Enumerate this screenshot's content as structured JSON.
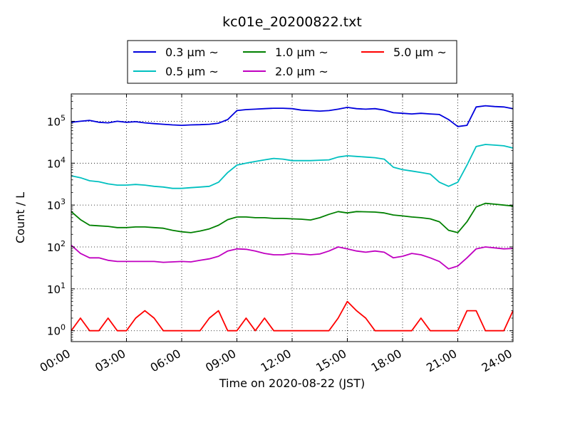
{
  "chart_data": {
    "type": "line",
    "title": "kc01e_20200822.txt",
    "xlabel": "Time on 2020-08-22 (JST)",
    "ylabel": "Count / L",
    "xlim": [
      "00:00",
      "24:00"
    ],
    "ylim": [
      0.55,
      450000
    ],
    "yscale": "log",
    "grid": true,
    "legend_position": "top-center",
    "x_ticks": [
      "00:00",
      "03:00",
      "06:00",
      "09:00",
      "12:00",
      "15:00",
      "18:00",
      "21:00",
      "24:00"
    ],
    "y_ticks": [
      {
        "base": "10",
        "exp": "0",
        "value": 1
      },
      {
        "base": "10",
        "exp": "1",
        "value": 10
      },
      {
        "base": "10",
        "exp": "2",
        "value": 100
      },
      {
        "base": "10",
        "exp": "3",
        "value": 1000
      },
      {
        "base": "10",
        "exp": "4",
        "value": 10000
      },
      {
        "base": "10",
        "exp": "5",
        "value": 100000
      }
    ],
    "x": [
      "00:00",
      "00:30",
      "01:00",
      "01:30",
      "02:00",
      "02:30",
      "03:00",
      "03:30",
      "04:00",
      "04:30",
      "05:00",
      "05:30",
      "06:00",
      "06:30",
      "07:00",
      "07:30",
      "08:00",
      "08:30",
      "09:00",
      "09:30",
      "10:00",
      "10:30",
      "11:00",
      "11:30",
      "12:00",
      "12:30",
      "13:00",
      "13:30",
      "14:00",
      "14:30",
      "15:00",
      "15:30",
      "16:00",
      "16:30",
      "17:00",
      "17:30",
      "18:00",
      "18:30",
      "19:00",
      "19:30",
      "20:00",
      "20:30",
      "21:00",
      "21:30",
      "22:00",
      "22:30",
      "23:00",
      "23:30",
      "24:00"
    ],
    "series": [
      {
        "name": "0.3 μm ~",
        "color": "#0000dd",
        "values": [
          95000,
          100000,
          105000,
          95000,
          92000,
          100000,
          95000,
          98000,
          92000,
          88000,
          85000,
          82000,
          80000,
          82000,
          83000,
          85000,
          90000,
          110000,
          180000,
          190000,
          195000,
          200000,
          205000,
          205000,
          200000,
          185000,
          180000,
          175000,
          180000,
          195000,
          215000,
          200000,
          195000,
          200000,
          185000,
          160000,
          155000,
          150000,
          155000,
          150000,
          145000,
          110000,
          75000,
          80000,
          220000,
          235000,
          225000,
          220000,
          200000
        ]
      },
      {
        "name": "0.5 μm ~",
        "color": "#00c0c0",
        "values": [
          5000,
          4500,
          3800,
          3600,
          3200,
          3000,
          3000,
          3100,
          3000,
          2800,
          2700,
          2500,
          2500,
          2600,
          2700,
          2800,
          3500,
          6000,
          9000,
          10000,
          11000,
          12000,
          13000,
          12500,
          11500,
          11500,
          11500,
          11800,
          12000,
          14000,
          15000,
          14500,
          14000,
          13500,
          12500,
          8000,
          7000,
          6500,
          6000,
          5500,
          3500,
          2800,
          3500,
          9000,
          25000,
          28000,
          27000,
          26000,
          23000
        ]
      },
      {
        "name": "1.0 μm ~",
        "color": "#008000",
        "values": [
          700,
          450,
          330,
          320,
          310,
          290,
          290,
          300,
          300,
          290,
          280,
          250,
          230,
          220,
          240,
          270,
          330,
          450,
          520,
          520,
          500,
          500,
          480,
          480,
          470,
          460,
          440,
          500,
          600,
          700,
          650,
          700,
          690,
          680,
          650,
          580,
          550,
          520,
          500,
          470,
          400,
          250,
          220,
          400,
          900,
          1100,
          1050,
          1000,
          950
        ]
      },
      {
        "name": "2.0 μm ~",
        "color": "#c000c0",
        "values": [
          110,
          70,
          55,
          55,
          48,
          45,
          45,
          45,
          45,
          45,
          43,
          44,
          45,
          44,
          48,
          52,
          60,
          80,
          90,
          88,
          80,
          70,
          65,
          65,
          70,
          68,
          65,
          68,
          80,
          100,
          90,
          80,
          75,
          80,
          75,
          55,
          60,
          70,
          65,
          55,
          45,
          30,
          35,
          55,
          90,
          100,
          95,
          90,
          92
        ]
      },
      {
        "name": "5.0 μm ~",
        "color": "#ff0000",
        "values": [
          1,
          2,
          1,
          1,
          2,
          1,
          1,
          2,
          3,
          2,
          1,
          1,
          1,
          1,
          1,
          2,
          3,
          1,
          1,
          2,
          1,
          2,
          1,
          1,
          1,
          1,
          1,
          1,
          1,
          2,
          5,
          3,
          2,
          1,
          1,
          1,
          1,
          1,
          2,
          1,
          1,
          1,
          1,
          3,
          3,
          1,
          1,
          1,
          3
        ]
      }
    ]
  }
}
